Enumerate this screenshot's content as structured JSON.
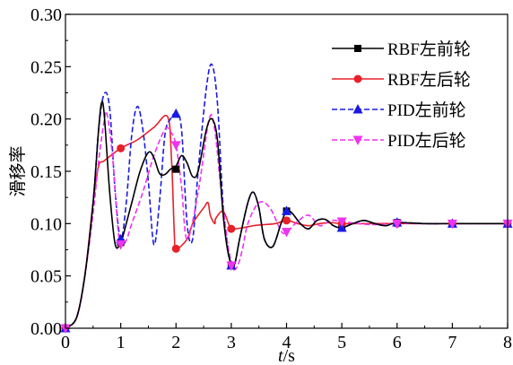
{
  "chart_data": {
    "type": "line",
    "xlabel": "t/s",
    "ylabel": "滑移率",
    "xlim": [
      0,
      8
    ],
    "ylim": [
      0,
      0.3
    ],
    "x_ticks": [
      "0",
      "1",
      "2",
      "3",
      "4",
      "5",
      "6",
      "7",
      "8"
    ],
    "y_ticks": [
      "0.00",
      "0.05",
      "0.10",
      "0.15",
      "0.20",
      "0.25",
      "0.30"
    ],
    "grid": false,
    "legend_position": "top-right",
    "series": [
      {
        "name": "RBF左前轮",
        "color": "#000000",
        "dash": "solid",
        "marker": "square",
        "x": [
          0,
          0.2,
          0.35,
          0.5,
          0.6,
          0.65,
          0.7,
          0.8,
          0.9,
          1.0,
          1.05,
          1.1,
          1.2,
          1.35,
          1.5,
          1.6,
          1.7,
          1.8,
          1.9,
          2.0,
          2.1,
          2.2,
          2.3,
          2.4,
          2.55,
          2.65,
          2.75,
          2.85,
          2.95,
          3.05,
          3.15,
          3.3,
          3.4,
          3.5,
          3.6,
          3.75,
          3.9,
          4.0,
          4.1,
          4.25,
          4.4,
          4.55,
          4.7,
          4.85,
          5.0,
          5.2,
          5.4,
          5.6,
          5.8,
          6.0,
          6.5,
          7.0,
          7.5,
          8.0
        ],
        "y": [
          0,
          0.01,
          0.05,
          0.12,
          0.19,
          0.215,
          0.205,
          0.13,
          0.08,
          0.082,
          0.09,
          0.1,
          0.12,
          0.15,
          0.168,
          0.163,
          0.148,
          0.147,
          0.152,
          0.155,
          0.165,
          0.158,
          0.145,
          0.15,
          0.19,
          0.2,
          0.18,
          0.11,
          0.07,
          0.06,
          0.085,
          0.12,
          0.13,
          0.115,
          0.085,
          0.078,
          0.1,
          0.112,
          0.11,
          0.1,
          0.095,
          0.103,
          0.104,
          0.098,
          0.096,
          0.1,
          0.103,
          0.1,
          0.098,
          0.101,
          0.1,
          0.1,
          0.1,
          0.1
        ],
        "markers_x": [
          0,
          1,
          2,
          3,
          4,
          5,
          6,
          7,
          8
        ],
        "markers_y": [
          0,
          0.082,
          0.152,
          0.06,
          0.112,
          0.096,
          0.101,
          0.1,
          0.1
        ]
      },
      {
        "name": "RBF左后轮",
        "color": "#e8202a",
        "dash": "solid",
        "marker": "circle",
        "x": [
          0,
          0.2,
          0.35,
          0.5,
          0.6,
          0.7,
          1.0,
          1.3,
          1.6,
          1.85,
          1.92,
          1.97,
          2.0,
          2.2,
          2.3,
          2.5,
          2.58,
          2.62,
          2.7,
          2.72,
          2.85,
          2.95,
          3.0,
          3.2,
          3.4,
          3.6,
          3.8,
          4.0,
          4.2,
          4.4,
          4.6,
          4.8,
          5.0,
          5.5,
          6.0,
          7.0,
          8.0
        ],
        "y": [
          0,
          0.01,
          0.05,
          0.12,
          0.155,
          0.16,
          0.172,
          0.18,
          0.192,
          0.202,
          0.16,
          0.09,
          0.076,
          0.085,
          0.1,
          0.115,
          0.12,
          0.108,
          0.1,
          0.105,
          0.112,
          0.1,
          0.095,
          0.096,
          0.098,
          0.099,
          0.1,
          0.103,
          0.1,
          0.098,
          0.1,
          0.101,
          0.1,
          0.1,
          0.1,
          0.1,
          0.1
        ],
        "markers_x": [
          0,
          1,
          2,
          3,
          4,
          5,
          6,
          7,
          8
        ],
        "markers_y": [
          0,
          0.172,
          0.076,
          0.095,
          0.103,
          0.1,
          0.1,
          0.1,
          0.1
        ]
      },
      {
        "name": "PID左前轮",
        "color": "#1a1ae6",
        "dash": "dashed",
        "marker": "triangle-up",
        "x": [
          0,
          0.2,
          0.35,
          0.5,
          0.6,
          0.7,
          0.8,
          0.9,
          1.0,
          1.1,
          1.2,
          1.3,
          1.4,
          1.5,
          1.6,
          1.7,
          1.8,
          1.9,
          2.0,
          2.1,
          2.2,
          2.3,
          2.4,
          2.55,
          2.65,
          2.75,
          2.85,
          2.95,
          3.05,
          3.15,
          3.3,
          3.4,
          3.5,
          3.6,
          3.75,
          3.9,
          4.0,
          4.1,
          4.25,
          4.4,
          4.55,
          4.7,
          4.85,
          5.0,
          5.2,
          5.4,
          5.6,
          5.8,
          6.0,
          6.5,
          7.0,
          7.5,
          8.0
        ],
        "y": [
          0,
          0.01,
          0.05,
          0.12,
          0.19,
          0.224,
          0.21,
          0.13,
          0.085,
          0.12,
          0.185,
          0.212,
          0.19,
          0.14,
          0.08,
          0.12,
          0.185,
          0.2,
          0.205,
          0.19,
          0.1,
          0.085,
          0.15,
          0.23,
          0.252,
          0.215,
          0.12,
          0.075,
          0.06,
          0.085,
          0.12,
          0.13,
          0.115,
          0.085,
          0.078,
          0.1,
          0.112,
          0.11,
          0.1,
          0.095,
          0.103,
          0.104,
          0.098,
          0.096,
          0.1,
          0.103,
          0.1,
          0.098,
          0.101,
          0.1,
          0.1,
          0.1,
          0.1
        ],
        "markers_x": [
          0,
          1,
          2,
          3,
          4,
          5,
          6,
          7,
          8
        ],
        "markers_y": [
          0,
          0.085,
          0.205,
          0.06,
          0.112,
          0.096,
          0.101,
          0.1,
          0.1
        ]
      },
      {
        "name": "PID左后轮",
        "color": "#ee33ee",
        "dash": "dashed",
        "marker": "triangle-down",
        "x": [
          0,
          0.2,
          0.35,
          0.5,
          0.6,
          0.7,
          0.75,
          0.85,
          0.95,
          1.0,
          1.1,
          1.2,
          1.4,
          1.6,
          1.8,
          1.9,
          2.0,
          2.1,
          2.2,
          2.4,
          2.6,
          2.7,
          2.8,
          2.9,
          3.0,
          3.1,
          3.2,
          3.3,
          3.5,
          3.7,
          3.9,
          4.0,
          4.2,
          4.4,
          4.6,
          4.8,
          5.0,
          5.3,
          5.6,
          6.0,
          6.5,
          7.0,
          8.0
        ],
        "y": [
          0,
          0.01,
          0.05,
          0.11,
          0.16,
          0.198,
          0.205,
          0.165,
          0.095,
          0.08,
          0.084,
          0.1,
          0.13,
          0.165,
          0.19,
          0.188,
          0.175,
          0.135,
          0.085,
          0.13,
          0.2,
          0.19,
          0.14,
          0.095,
          0.06,
          0.058,
          0.075,
          0.1,
          0.12,
          0.115,
          0.093,
          0.092,
          0.102,
          0.108,
          0.098,
          0.103,
          0.102,
          0.1,
          0.099,
          0.1,
          0.1,
          0.1,
          0.1
        ],
        "markers_x": [
          0,
          1,
          2,
          3,
          4,
          5,
          6,
          7,
          8
        ],
        "markers_y": [
          0,
          0.08,
          0.175,
          0.06,
          0.092,
          0.102,
          0.1,
          0.1,
          0.1
        ]
      }
    ]
  }
}
